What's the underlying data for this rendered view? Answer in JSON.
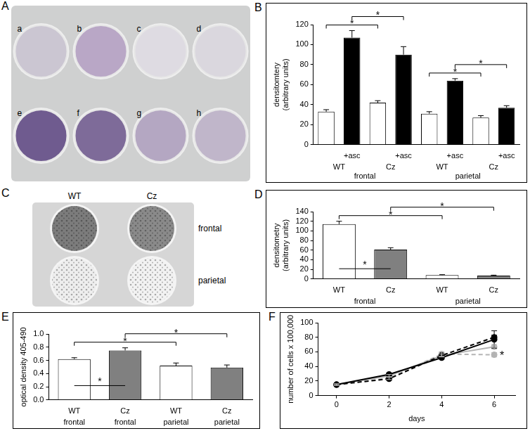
{
  "plate_A": {
    "panel": "A",
    "wells": [
      {
        "label": "a",
        "color": "#cbc6d2"
      },
      {
        "label": "b",
        "color": "#b9a7c6"
      },
      {
        "label": "c",
        "color": "#dedbe2"
      },
      {
        "label": "d",
        "color": "#dad7de"
      },
      {
        "label": "e",
        "color": "#6f5b8f"
      },
      {
        "label": "f",
        "color": "#7e6b99"
      },
      {
        "label": "g",
        "color": "#b4a7c2"
      },
      {
        "label": "h",
        "color": "#c0b6ca"
      }
    ]
  },
  "plate_C": {
    "panel": "C",
    "columns": [
      "WT",
      "Cz"
    ],
    "rows": [
      "frontal",
      "parietal"
    ],
    "colors": [
      [
        "#7c7c7c",
        "#8a8a8a"
      ],
      [
        "#eeeeee",
        "#f2f2f2"
      ]
    ]
  },
  "chart_data": [
    {
      "panel": "B",
      "type": "bar",
      "ylabel": [
        "densitomtery",
        "(arbitrary units)"
      ],
      "categories": [
        null,
        "+asc",
        null,
        "+asc",
        null,
        "+asc",
        null,
        "+asc"
      ],
      "values": [
        33,
        107,
        42,
        90,
        31,
        64,
        27,
        37
      ],
      "errors": [
        2,
        7,
        2,
        8,
        2,
        2,
        2,
        2
      ],
      "colors": [
        "#ffffff",
        "#000000",
        "#ffffff",
        "#000000",
        "#ffffff",
        "#000000",
        "#ffffff",
        "#000000"
      ],
      "groups": [
        "WT",
        "Cz",
        "WT",
        "Cz"
      ],
      "supergroups": [
        "frontal",
        "parietal"
      ],
      "ylim": [
        0,
        120
      ],
      "yticks": [
        0,
        20,
        40,
        60,
        80,
        100,
        120
      ],
      "grid": false,
      "annotations": [
        {
          "text": "*",
          "between": [
            0,
            2
          ]
        },
        {
          "text": "*",
          "between": [
            1,
            3
          ]
        },
        {
          "text": "*",
          "between": [
            4,
            6
          ]
        },
        {
          "text": "*",
          "between": [
            5,
            7
          ]
        }
      ]
    },
    {
      "panel": "D",
      "type": "bar",
      "ylabel": [
        "densitometry",
        "(arbitrary units)"
      ],
      "categories": [
        "WT",
        "Cz",
        "WT",
        "Cz"
      ],
      "values": [
        114,
        61,
        8,
        7
      ],
      "errors": [
        6,
        4,
        1,
        1
      ],
      "colors": [
        "#ffffff",
        "#808080",
        "#ffffff",
        "#808080"
      ],
      "groups": [
        "frontal",
        "parietal"
      ],
      "ylim": [
        0,
        140
      ],
      "yticks": [
        0,
        20,
        40,
        60,
        80,
        100,
        120,
        140
      ],
      "grid": false,
      "annotations": [
        {
          "text": "*",
          "between": [
            0,
            2
          ]
        },
        {
          "text": "*",
          "between": [
            1,
            3
          ]
        },
        {
          "text": "*",
          "between": [
            0,
            1
          ],
          "kind": "line"
        }
      ]
    },
    {
      "panel": "E",
      "type": "bar",
      "ylabel": "optical density 405-490",
      "categories": [
        "WT",
        "Cz",
        "WT",
        "Cz"
      ],
      "values": [
        0.62,
        0.75,
        0.52,
        0.49
      ],
      "errors": [
        0.02,
        0.04,
        0.04,
        0.04
      ],
      "colors": [
        "#ffffff",
        "#808080",
        "#ffffff",
        "#808080"
      ],
      "groups": [
        "frontal",
        "frontal",
        "parietal",
        "parietal"
      ],
      "ylim": [
        0,
        1
      ],
      "yticks": [
        {
          "value": 0,
          "label": "0.0"
        },
        0.2,
        0.4,
        0.6,
        0.8,
        {
          "value": 1,
          "label": "1.0"
        }
      ],
      "grid": false,
      "annotations": [
        {
          "text": "*",
          "between": [
            0,
            2
          ]
        },
        {
          "text": "*",
          "between": [
            1,
            3
          ]
        },
        {
          "text": "*",
          "between": [
            0,
            1
          ],
          "kind": "line"
        }
      ]
    },
    {
      "panel": "F",
      "type": "line",
      "xlabel": "days",
      "ylabel": "number of cells x 100,000",
      "x": [
        0,
        2,
        4,
        6
      ],
      "xlim": [
        -0.7,
        6.8
      ],
      "xticks": [
        0,
        2,
        4,
        6
      ],
      "ylim": [
        0,
        100
      ],
      "yticks": [
        0,
        20,
        40,
        60,
        80,
        100
      ],
      "grid": false,
      "series": [
        {
          "color": "#000000",
          "line_style": "solid",
          "marker": "circle",
          "values": [
            15,
            29,
            52,
            77
          ],
          "errors": [
            1,
            2,
            2,
            12
          ]
        },
        {
          "color": "#000000",
          "line_style": "dashed",
          "marker": "circle",
          "values": [
            15,
            23,
            55,
            80
          ],
          "errors": [
            1,
            2,
            2,
            3
          ]
        },
        {
          "color": "#b4b4b4",
          "line_style": "solid",
          "marker": "circle",
          "values": [
            15,
            27,
            55,
            67
          ],
          "errors": [
            1,
            2,
            2,
            3
          ]
        },
        {
          "color": "#b4b4b4",
          "line_style": "dashed",
          "marker": "circle",
          "values": [
            15,
            24,
            57,
            56
          ],
          "errors": [
            1,
            2,
            3,
            3
          ]
        }
      ],
      "annotations": [
        {
          "text": "*",
          "series": 3,
          "index": 3
        }
      ]
    }
  ]
}
